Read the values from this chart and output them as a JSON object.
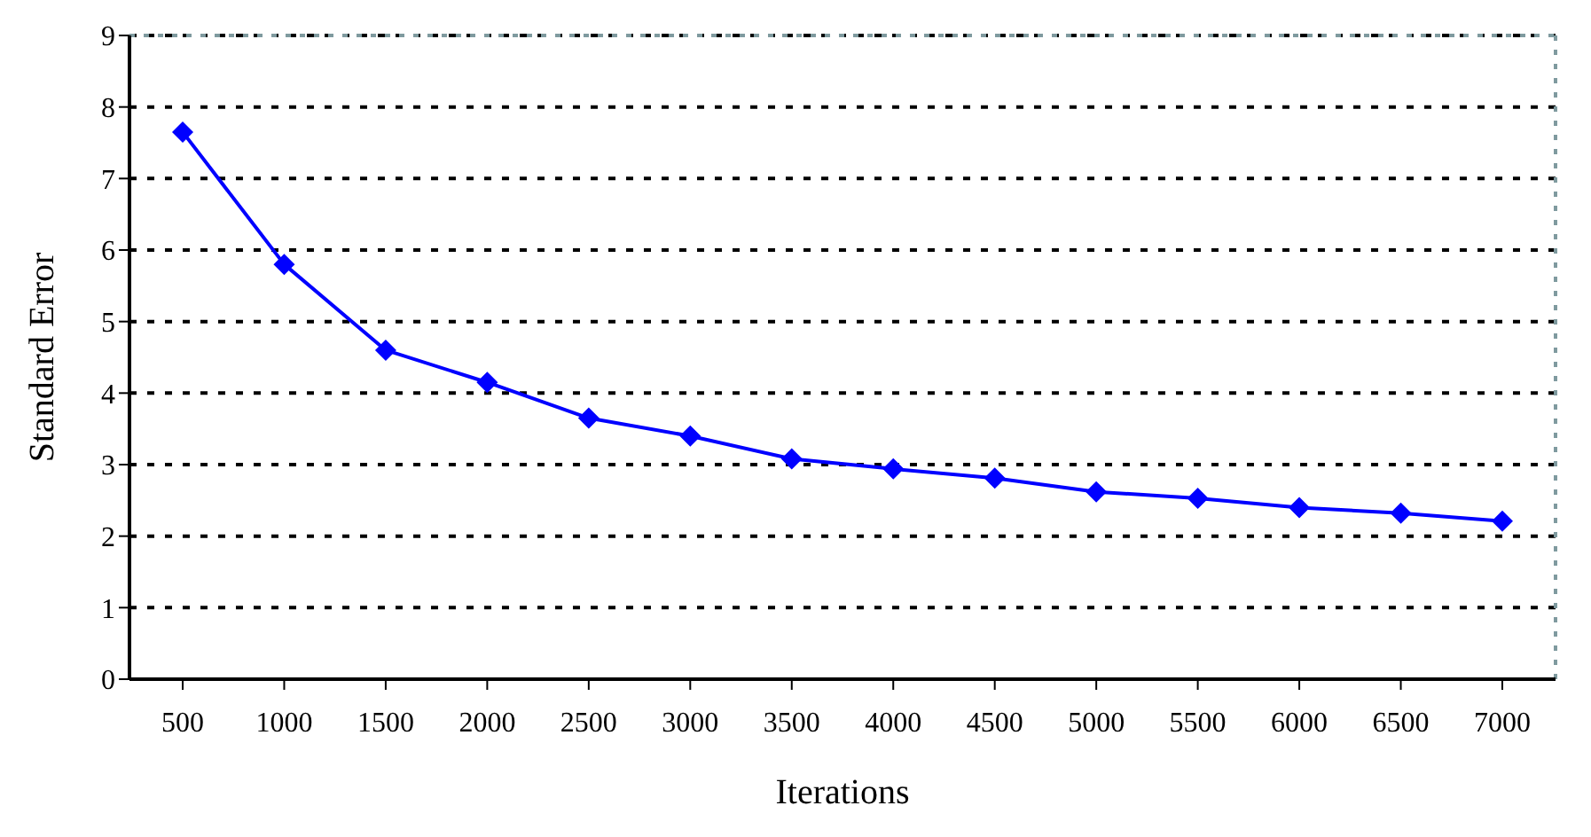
{
  "chart_data": {
    "type": "line",
    "xlabel": "Iterations",
    "ylabel": "Standard Error",
    "categories": [
      "500",
      "1000",
      "1500",
      "2000",
      "2500",
      "3000",
      "3500",
      "4000",
      "4500",
      "5000",
      "5500",
      "6000",
      "6500",
      "7000"
    ],
    "series": [
      {
        "color": "#0000ff",
        "values": [
          7.65,
          5.8,
          4.6,
          4.15,
          3.65,
          3.4,
          3.08,
          2.94,
          2.81,
          2.62,
          2.53,
          2.4,
          2.32,
          2.21
        ]
      }
    ],
    "ylim": [
      0,
      9
    ],
    "yticks": [
      0,
      1,
      2,
      3,
      4,
      5,
      6,
      7,
      8,
      9
    ],
    "grid": "y",
    "marker": "diamond"
  }
}
